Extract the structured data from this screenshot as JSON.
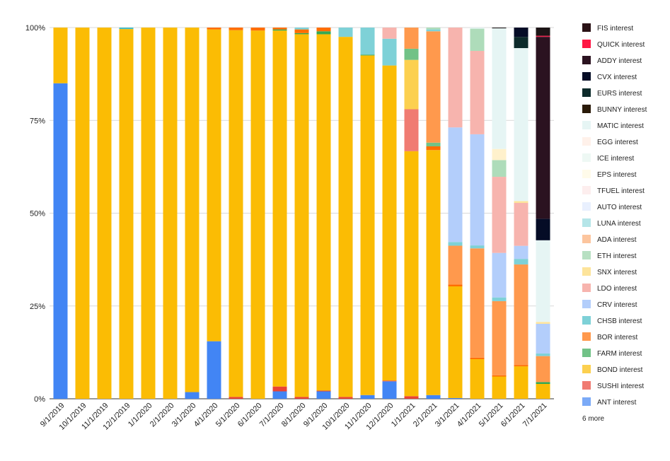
{
  "chart_data": {
    "type": "bar",
    "stacked": true,
    "percent": true,
    "categories": [
      "9/1/2019",
      "10/1/2019",
      "11/1/2019",
      "12/1/2019",
      "1/1/2020",
      "2/1/2020",
      "3/1/2020",
      "4/1/2020",
      "5/1/2020",
      "6/1/2020",
      "7/1/2020",
      "8/1/2020",
      "9/1/2020",
      "10/1/2020",
      "11/1/2020",
      "12/1/2020",
      "1/1/2021",
      "2/1/2021",
      "3/1/2021",
      "4/1/2021",
      "5/1/2021",
      "6/1/2021",
      "7/1/2021"
    ],
    "yticks": [
      "0%",
      "25%",
      "50%",
      "75%",
      "100%"
    ],
    "ylim": [
      0,
      100
    ],
    "grid": true,
    "legend_position": "right",
    "legend_more": "6 more",
    "series": [
      {
        "name": "ANT interest",
        "color": "#4285f4",
        "values": [
          85,
          0,
          0,
          0,
          0,
          0,
          1.8,
          15.5,
          0,
          0,
          2,
          0,
          2,
          0,
          1,
          4.7,
          0,
          1,
          0.2,
          0,
          0,
          0,
          0
        ]
      },
      {
        "name": "SUSHI interest",
        "color": "#ea4335",
        "values": [
          0,
          0,
          0,
          0,
          0,
          0,
          0,
          0,
          0.5,
          0,
          1.3,
          0.5,
          0.2,
          0.5,
          0,
          0.2,
          0.7,
          0,
          0,
          0,
          0,
          0,
          0
        ]
      },
      {
        "name": "BOND interest",
        "color": "#fbbc04",
        "values": [
          15,
          100,
          100,
          99.6,
          100,
          100,
          98.2,
          84,
          98.8,
          99.2,
          95.9,
          98.2,
          96,
          97,
          91.5,
          84.8,
          66,
          66,
          30.2,
          10.7,
          6,
          8.7,
          4
        ]
      },
      {
        "name": "FARM interest",
        "color": "#34a853",
        "values": [
          0,
          0,
          0,
          0,
          0,
          0,
          0,
          0,
          0,
          0,
          0.3,
          0.3,
          0.8,
          0,
          0.2,
          0,
          0,
          0,
          0,
          0,
          0,
          0,
          0.5
        ]
      },
      {
        "name": "BOR interest",
        "color": "#ff6d01",
        "values": [
          0,
          0,
          0,
          0,
          0,
          0,
          0,
          0.5,
          0.7,
          0.8,
          0.5,
          1,
          1,
          0,
          0,
          0,
          0,
          1,
          0.5,
          0.4,
          0.3,
          0.3,
          0
        ]
      },
      {
        "name": "CHSB interest",
        "color": "#46bdc6",
        "values": [
          0,
          0,
          0,
          0.4,
          0,
          0,
          0,
          0,
          0,
          0,
          0,
          0,
          0,
          0,
          0,
          0,
          0,
          0,
          0,
          0,
          0,
          0,
          0
        ]
      },
      {
        "name": "CRV interest",
        "color": "#7baaf7",
        "values": [
          0,
          0,
          0,
          0,
          0,
          0,
          0,
          0,
          0,
          0,
          0,
          0,
          0,
          0,
          0,
          0,
          0,
          0,
          0,
          0,
          0,
          0,
          0
        ]
      },
      {
        "name": "LDO interest",
        "color": "#f07b72",
        "values": [
          0,
          0,
          0,
          0,
          0,
          0,
          0,
          0,
          0,
          0,
          0,
          0,
          0,
          0,
          0,
          0,
          11.3,
          0,
          0,
          0,
          0,
          0,
          0
        ]
      },
      {
        "name": "SNX interest",
        "color": "#fcd04f",
        "values": [
          0,
          0,
          0,
          0,
          0,
          0,
          0,
          0,
          0,
          0,
          0,
          0,
          0,
          0,
          0,
          0,
          13.3,
          0,
          0,
          0,
          0,
          0,
          0
        ]
      },
      {
        "name": "ETH interest",
        "color": "#71c287",
        "values": [
          0,
          0,
          0,
          0,
          0,
          0,
          0,
          0,
          0,
          0,
          0,
          0,
          0,
          0,
          0,
          0,
          3,
          1,
          0,
          0,
          0,
          0,
          0
        ]
      },
      {
        "name": "ADA interest",
        "color": "#ff994d",
        "values": [
          0,
          0,
          0,
          0,
          0,
          0,
          0,
          0,
          0,
          0,
          0,
          0,
          0,
          0,
          0,
          0,
          5.7,
          30,
          10.5,
          29.5,
          20,
          27,
          7
        ]
      },
      {
        "name": "LUNA interest",
        "color": "#7ed1d7",
        "values": [
          0,
          0,
          0,
          0,
          0,
          0,
          0,
          0,
          0,
          0,
          0,
          0.5,
          0,
          2.5,
          7.3,
          7.2,
          0,
          0.5,
          1,
          0.8,
          1,
          1.5,
          0.7
        ]
      },
      {
        "name": "AUTO interest",
        "color": "#b3cefb",
        "values": [
          0,
          0,
          0,
          0,
          0,
          0,
          0,
          0,
          0,
          0,
          0,
          0,
          0,
          0,
          0,
          0,
          0,
          0,
          31,
          30,
          12,
          3.5,
          8
        ]
      },
      {
        "name": "TFUEL interest",
        "color": "#f7b4ae",
        "values": [
          0,
          0,
          0,
          0,
          0,
          0,
          0,
          0,
          0,
          0,
          0,
          0,
          0,
          0,
          0,
          3,
          0,
          0,
          27,
          22.5,
          20.5,
          11.5,
          0
        ]
      },
      {
        "name": "EPS interest",
        "color": "#fde49b",
        "values": [
          0,
          0,
          0,
          0,
          0,
          0,
          0,
          0,
          0,
          0,
          0,
          0,
          0,
          0,
          0,
          0,
          0,
          0,
          0,
          0,
          0,
          0.5,
          0.5
        ]
      },
      {
        "name": "ICE interest",
        "color": "#aedcba",
        "values": [
          0,
          0,
          0,
          0,
          0,
          0,
          0,
          0,
          0,
          0,
          0,
          0,
          0,
          0,
          0,
          0,
          0,
          0.5,
          0,
          6,
          4.5,
          0,
          0
        ]
      },
      {
        "name": "EGG interest",
        "color": "#fff1cc",
        "values": [
          0,
          0,
          0,
          0,
          0,
          0,
          0,
          0,
          0,
          0,
          0,
          0,
          0,
          0,
          0,
          0,
          0,
          0,
          0,
          0,
          3,
          0,
          0
        ]
      },
      {
        "name": "MATIC interest",
        "color": "#e6f5f4",
        "values": [
          0,
          0,
          0,
          0,
          0,
          0,
          0,
          0,
          0,
          0,
          0,
          0,
          0,
          0,
          0,
          0,
          0,
          0,
          0,
          0.3,
          32.5,
          41,
          22
        ]
      },
      {
        "name": "BUNNY interest",
        "color": "#2a1a08",
        "values": [
          0,
          0,
          0,
          0,
          0,
          0,
          0,
          0,
          0,
          0,
          0,
          0,
          0,
          0,
          0,
          0,
          0,
          0,
          0,
          0,
          0,
          0,
          0
        ]
      },
      {
        "name": "EURS interest",
        "color": "#0d2b2b",
        "values": [
          0,
          0,
          0,
          0,
          0,
          0,
          0,
          0,
          0,
          0,
          0,
          0,
          0,
          0,
          0,
          0,
          0,
          0,
          0,
          0,
          0,
          3,
          0
        ]
      },
      {
        "name": "CVX interest",
        "color": "#050c26",
        "values": [
          0,
          0,
          0,
          0,
          0,
          0,
          0,
          0,
          0,
          0,
          0,
          0,
          0,
          0,
          0,
          0,
          0,
          0,
          0,
          0,
          0,
          2.5,
          5.8
        ]
      },
      {
        "name": "ADDY interest",
        "color": "#2b1220",
        "values": [
          0,
          0,
          0,
          0,
          0,
          0,
          0,
          0,
          0,
          0,
          0,
          0,
          0,
          0,
          0,
          0,
          0,
          0,
          0,
          0,
          0,
          0,
          49
        ]
      },
      {
        "name": "QUICK interest",
        "color": "#e8214b",
        "values": [
          0,
          0,
          0,
          0,
          0,
          0,
          0,
          0,
          0,
          0,
          0,
          0,
          0,
          0,
          0,
          0,
          0,
          0,
          0,
          0,
          0,
          0,
          0.3
        ]
      },
      {
        "name": "FIS interest",
        "color": "#1c1416",
        "values": [
          0,
          0,
          0,
          0,
          0,
          0,
          0,
          0,
          0,
          0,
          0,
          0,
          0,
          0,
          0,
          0,
          0,
          0,
          0,
          0,
          0.2,
          0,
          2.2
        ]
      }
    ],
    "legend_order": [
      "FIS interest",
      "QUICK interest",
      "ADDY interest",
      "CVX interest",
      "EURS interest",
      "BUNNY interest",
      "MATIC interest",
      "EGG interest",
      "ICE interest",
      "EPS interest",
      "TFUEL interest",
      "AUTO interest",
      "LUNA interest",
      "ADA interest",
      "ETH interest",
      "SNX interest",
      "LDO interest",
      "CRV interest",
      "CHSB interest",
      "BOR interest",
      "FARM interest",
      "BOND interest",
      "SUSHI interest",
      "ANT interest"
    ],
    "legend_colors": {
      "FIS interest": "#2a1216",
      "QUICK interest": "#ff1744",
      "ADDY interest": "#2b1220",
      "CVX interest": "#050c26",
      "EURS interest": "#0d2b2b",
      "BUNNY interest": "#2a1a08",
      "MATIC interest": "#e6f5f4",
      "EGG interest": "#fff1ea",
      "ICE interest": "#eef8f4",
      "EPS interest": "#fffbea",
      "TFUEL interest": "#fdeeee",
      "AUTO interest": "#e9f0fe",
      "LUNA interest": "#b5e5e8",
      "ADA interest": "#fcc59e",
      "ETH interest": "#b7e0c2",
      "SNX interest": "#fde49b",
      "LDO interest": "#f7b4ae",
      "CRV interest": "#b3cefb",
      "CHSB interest": "#7ed1d7",
      "BOR interest": "#ff994d",
      "FARM interest": "#71c287",
      "BOND interest": "#fcd04f",
      "SUSHI interest": "#f07b72",
      "ANT interest": "#7baaf7"
    }
  }
}
